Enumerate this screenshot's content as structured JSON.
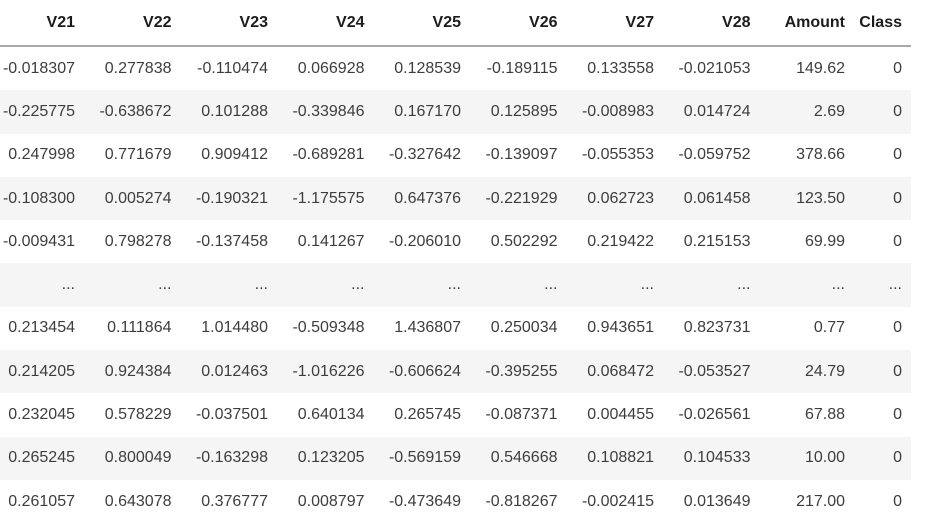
{
  "view": {
    "kind": "dataframe-output",
    "stripe_color": "#f5f5f5",
    "header_border_color": "#a9a9a9",
    "header_text_color": "#1c1c1c",
    "cell_text_color": "#3d3d3d",
    "background_color": "#ffffff"
  },
  "chart_data": {
    "type": "table",
    "columns": [
      "V21",
      "V22",
      "V23",
      "V24",
      "V25",
      "V26",
      "V27",
      "V28",
      "Amount",
      "Class"
    ],
    "rows": [
      [
        "-0.018307",
        "0.277838",
        "-0.110474",
        "0.066928",
        "0.128539",
        "-0.189115",
        "0.133558",
        "-0.021053",
        "149.62",
        "0"
      ],
      [
        "-0.225775",
        "-0.638672",
        "0.101288",
        "-0.339846",
        "0.167170",
        "0.125895",
        "-0.008983",
        "0.014724",
        "2.69",
        "0"
      ],
      [
        "0.247998",
        "0.771679",
        "0.909412",
        "-0.689281",
        "-0.327642",
        "-0.139097",
        "-0.055353",
        "-0.059752",
        "378.66",
        "0"
      ],
      [
        "-0.108300",
        "0.005274",
        "-0.190321",
        "-1.175575",
        "0.647376",
        "-0.221929",
        "0.062723",
        "0.061458",
        "123.50",
        "0"
      ],
      [
        "-0.009431",
        "0.798278",
        "-0.137458",
        "0.141267",
        "-0.206010",
        "0.502292",
        "0.219422",
        "0.215153",
        "69.99",
        "0"
      ],
      [
        "...",
        "...",
        "...",
        "...",
        "...",
        "...",
        "...",
        "...",
        "...",
        "..."
      ],
      [
        "0.213454",
        "0.111864",
        "1.014480",
        "-0.509348",
        "1.436807",
        "0.250034",
        "0.943651",
        "0.823731",
        "0.77",
        "0"
      ],
      [
        "0.214205",
        "0.924384",
        "0.012463",
        "-1.016226",
        "-0.606624",
        "-0.395255",
        "0.068472",
        "-0.053527",
        "24.79",
        "0"
      ],
      [
        "0.232045",
        "0.578229",
        "-0.037501",
        "0.640134",
        "0.265745",
        "-0.087371",
        "0.004455",
        "-0.026561",
        "67.88",
        "0"
      ],
      [
        "0.265245",
        "0.800049",
        "-0.163298",
        "0.123205",
        "-0.569159",
        "0.546668",
        "0.108821",
        "0.104533",
        "10.00",
        "0"
      ],
      [
        "0.261057",
        "0.643078",
        "0.376777",
        "0.008797",
        "-0.473649",
        "-0.818267",
        "-0.002415",
        "0.013649",
        "217.00",
        "0"
      ]
    ]
  }
}
